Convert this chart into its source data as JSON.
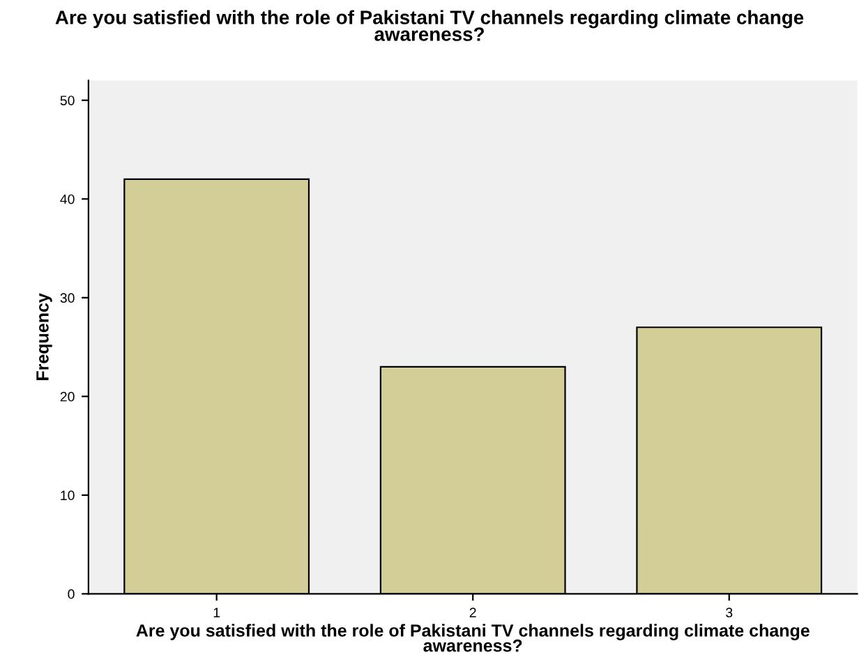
{
  "chart_data": {
    "type": "bar",
    "title": "Are you satisfied with the role of Pakistani TV channels regarding climate change awareness?",
    "xlabel": "Are you satisfied with the role of Pakistani TV channels regarding climate change awareness?",
    "ylabel": "Frequency",
    "categories": [
      "1",
      "2",
      "3"
    ],
    "values": [
      42,
      23,
      27
    ],
    "color": "#d3ce97",
    "ylim": [
      0,
      52
    ],
    "yticks": [
      0,
      10,
      20,
      30,
      40,
      50
    ],
    "grid": false
  }
}
